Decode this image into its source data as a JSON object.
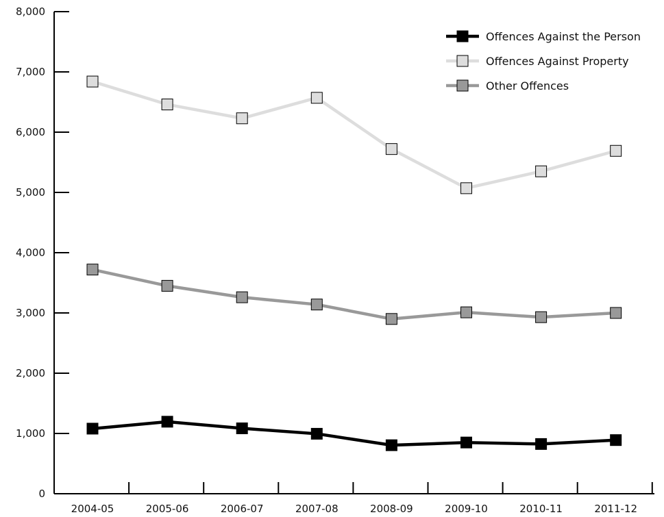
{
  "chart_data": {
    "type": "line",
    "title": "",
    "xlabel": "",
    "ylabel": "",
    "categories": [
      "2004-05",
      "2005-06",
      "2006-07",
      "2007-08",
      "2008-09",
      "2009-10",
      "2010-11",
      "2011-12"
    ],
    "ylim": [
      0,
      8000
    ],
    "yticks": [
      "0",
      "1,000",
      "2,000",
      "3,000",
      "4,000",
      "5,000",
      "6,000",
      "7,000",
      "8,000"
    ],
    "ytick_values": [
      0,
      1000,
      2000,
      3000,
      4000,
      5000,
      6000,
      7000,
      8000
    ],
    "grid": false,
    "legend_position": "top-right",
    "series": [
      {
        "name": "Offences Against the Person",
        "color": "#000000",
        "values": [
          1080,
          1195,
          1085,
          995,
          805,
          850,
          825,
          890
        ]
      },
      {
        "name": "Offences Against Property",
        "color": "#dddddd",
        "values": [
          6840,
          6460,
          6230,
          6570,
          5720,
          5070,
          5350,
          5690
        ]
      },
      {
        "name": "Other Offences",
        "color": "#999999",
        "values": [
          3720,
          3450,
          3260,
          3140,
          2900,
          3010,
          2930,
          3000
        ]
      }
    ]
  }
}
